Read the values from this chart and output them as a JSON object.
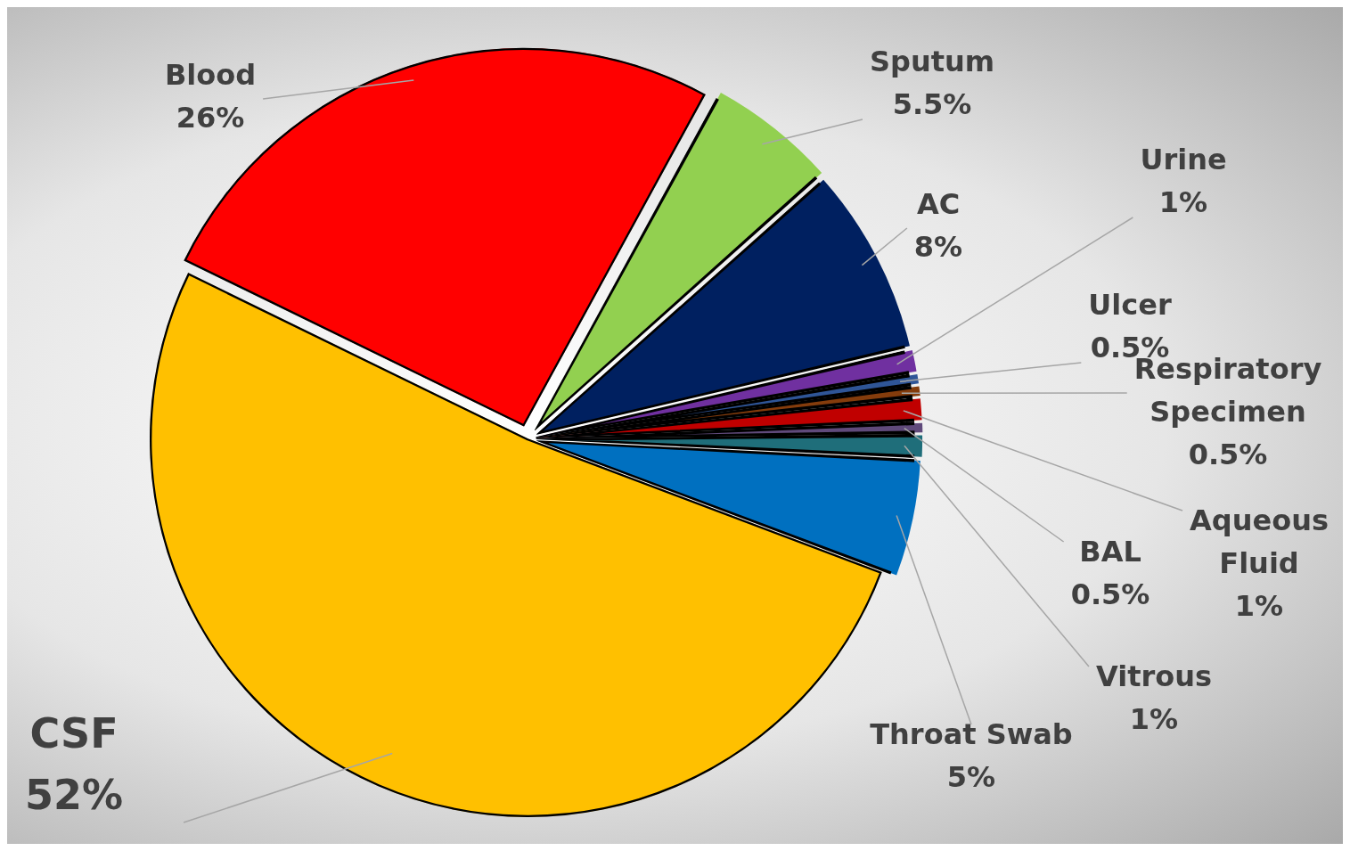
{
  "chart_data": {
    "type": "pie",
    "categories": [
      "Blood",
      "Sputum",
      "AC",
      "Urine",
      "Ulcer",
      "Respiratory Specimen",
      "Aqueous Fluid",
      "BAL",
      "Vitrous",
      "Throat Swab",
      "CSF"
    ],
    "values": [
      26,
      5.5,
      8,
      1,
      0.5,
      0.5,
      1,
      0.5,
      1,
      5,
      52
    ],
    "value_labels": [
      "26%",
      "5.5%",
      "8%",
      "1%",
      "0.5%",
      "0.5%",
      "1%",
      "0.5%",
      "1%",
      "5%",
      "52%"
    ],
    "colors": [
      "#ff0000",
      "#92d050",
      "#002060",
      "#7030a0",
      "#2f5597",
      "#843c0c",
      "#c00000",
      "#604a7b",
      "#1f6e7a",
      "#0070c0",
      "#ffc000"
    ],
    "legend": false
  }
}
